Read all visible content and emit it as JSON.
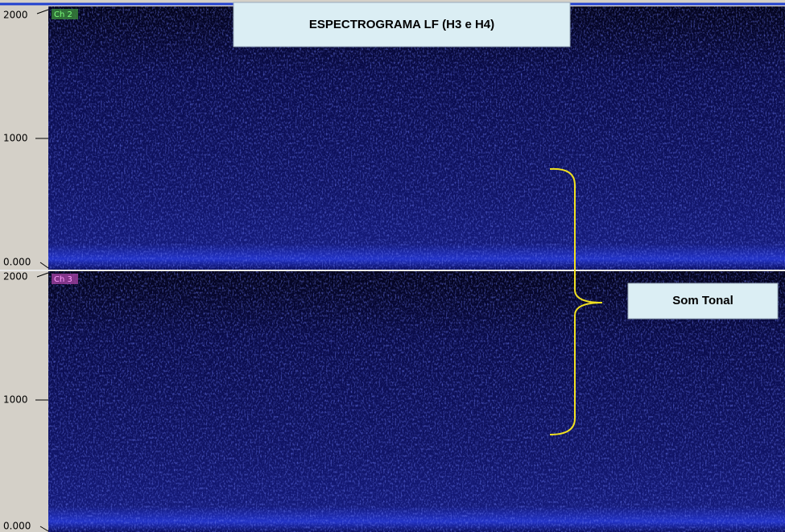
{
  "header": {
    "title": "ESPECTROGRAMA LF (H3 e H4)"
  },
  "annotation": {
    "label": "Som Tonal"
  },
  "panels": [
    {
      "channel": "Ch 2",
      "axis_labels": [
        "2000",
        "1000",
        "0.000"
      ]
    },
    {
      "channel": "Ch 3",
      "axis_labels": [
        "2000",
        "1000",
        "0.000"
      ]
    }
  ]
}
